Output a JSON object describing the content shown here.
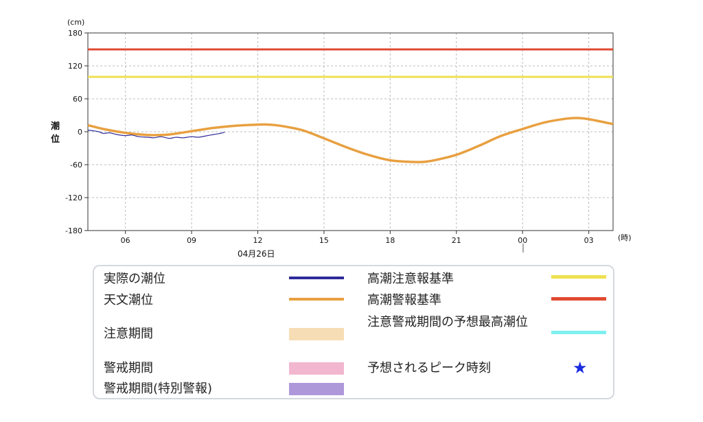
{
  "chart_data": {
    "type": "line",
    "unit_label": "(cm)",
    "ylabel": "潮位",
    "xunit_label": "(時)",
    "date_label": "04月26日",
    "ylim": [
      -180,
      180
    ],
    "yticks": [
      "180",
      "120",
      "60",
      "0",
      "-60",
      "-120",
      "-180"
    ],
    "xlim_hours": [
      4.3,
      28.1
    ],
    "xticks": [
      {
        "hour": 6,
        "label": "06"
      },
      {
        "hour": 9,
        "label": "09"
      },
      {
        "hour": 12,
        "label": "12"
      },
      {
        "hour": 15,
        "label": "15"
      },
      {
        "hour": 18,
        "label": "18"
      },
      {
        "hour": 21,
        "label": "21"
      },
      {
        "hour": 24,
        "label": "00"
      },
      {
        "hour": 27,
        "label": "03"
      }
    ],
    "grid": true,
    "series": [
      {
        "name": "天文潮位",
        "color": "#E8A040",
        "x": [
          4.3,
          5,
          6,
          7,
          7.5,
          8,
          9,
          10,
          11,
          12,
          12.5,
          13,
          14,
          15,
          16,
          17,
          18,
          19,
          19.5,
          20,
          21,
          22,
          23,
          24,
          25,
          26,
          26.5,
          27,
          28.1
        ],
        "y": [
          12,
          5,
          -2,
          -6,
          -6,
          -5,
          1,
          7,
          11,
          13,
          13,
          11,
          3,
          -12,
          -28,
          -42,
          -52,
          -55,
          -55,
          -52,
          -42,
          -26,
          -8,
          5,
          17,
          24,
          25,
          23,
          14
        ]
      },
      {
        "name": "実際の潮位",
        "color": "#2E2A9A",
        "x": [
          4.3,
          4.5,
          4.8,
          5,
          5.3,
          5.6,
          6,
          6.3,
          6.6,
          7,
          7.3,
          7.6,
          8,
          8.3,
          8.6,
          9,
          9.3,
          9.6,
          10,
          10.3,
          10.5
        ],
        "y": [
          3,
          2,
          0,
          -3,
          -2,
          -5,
          -7,
          -6,
          -9,
          -10,
          -11,
          -9,
          -12,
          -10,
          -11,
          -9,
          -10,
          -8,
          -5,
          -3,
          -1
        ]
      },
      {
        "name": "高潮注意報基準",
        "color": "#EEE050",
        "x": [
          4.3,
          28.1
        ],
        "y": [
          100,
          100
        ]
      },
      {
        "name": "高潮警報基準",
        "color": "#E04A30",
        "x": [
          4.3,
          28.1
        ],
        "y": [
          150,
          150
        ]
      }
    ]
  },
  "legend": {
    "actual": "実際の潮位",
    "astronomical": "天文潮位",
    "caution_period": "注意期間",
    "warning_period": "警戒期間",
    "special_warning_period": "警戒期間(特別警報)",
    "advisory_level": "高潮注意報基準",
    "warning_level": "高潮警報基準",
    "forecast_max": "注意警戒期間の予想最高潮位",
    "peak_time": "予想されるピーク時刻",
    "colors": {
      "actual": "#2E2A9A",
      "astronomical": "#E8A040",
      "caution_period": "#F6DDB5",
      "warning_period": "#F2B7CF",
      "special_warning_period": "#AE98DA",
      "advisory_level": "#EEE050",
      "warning_level": "#E04A30",
      "forecast_max": "#7FF0F0",
      "peak_star": "#1A2BE0"
    },
    "peak_icon": "star-icon"
  }
}
